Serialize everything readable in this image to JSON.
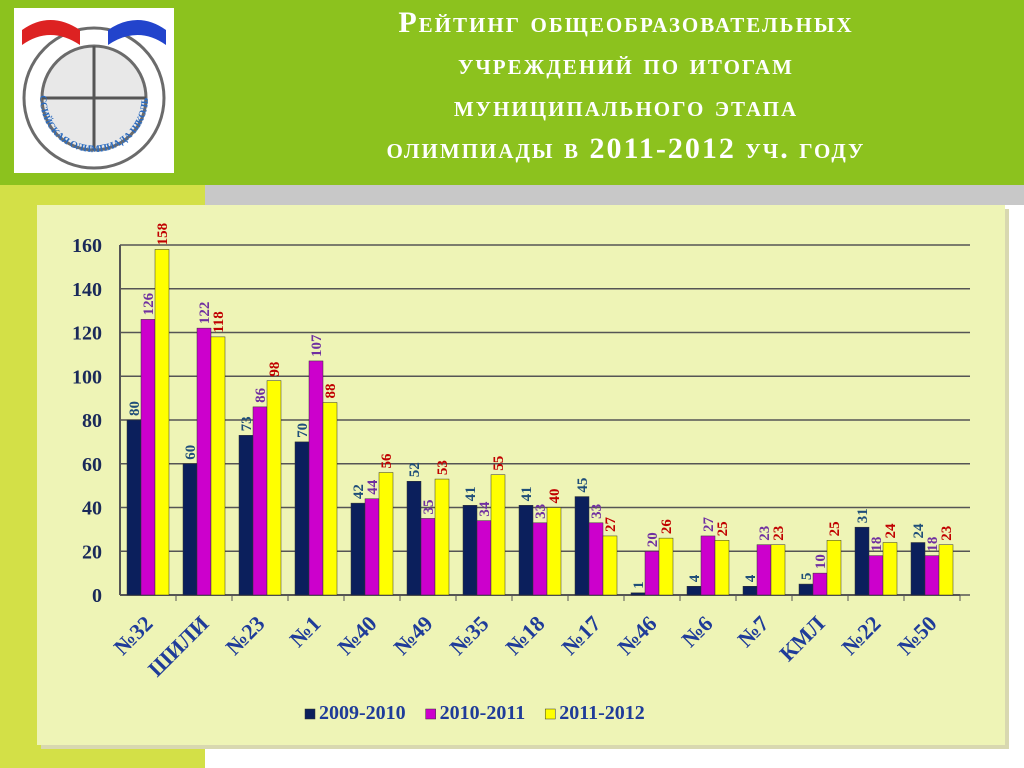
{
  "title": "Рейтинг общеобразовательных учреждений по итогам муниципального этапа олимпиады в 2011-2012 уч. году",
  "logo": {
    "text": "ВСЕРОССИЙСКАЯ ОЛИМПИАДА ШКОЛЬНИКОВ"
  },
  "chart_data": {
    "type": "bar",
    "categories": [
      "№32",
      "ШИЛИ",
      "№23",
      "№1",
      "№40",
      "№49",
      "№35",
      "№18",
      "№17",
      "№46",
      "№6",
      "№7",
      "КМЛ",
      "№22",
      "№50"
    ],
    "series": [
      {
        "name": "2009-2010",
        "color": "#0b1f5c",
        "label_color": "#1f4e79",
        "values": [
          80,
          60,
          73,
          70,
          42,
          52,
          41,
          41,
          45,
          1,
          4,
          4,
          5,
          31,
          24
        ]
      },
      {
        "name": "2010-2011",
        "color": "#cc00cc",
        "label_color": "#7030a0",
        "values": [
          126,
          122,
          86,
          107,
          44,
          35,
          34,
          33,
          33,
          20,
          27,
          23,
          10,
          18,
          18
        ]
      },
      {
        "name": "2011-2012",
        "color": "#ffff00",
        "label_color": "#c00000",
        "values": [
          158,
          118,
          98,
          88,
          56,
          53,
          55,
          40,
          27,
          26,
          25,
          23,
          25,
          24,
          23
        ]
      }
    ],
    "ylim": [
      0,
      160
    ],
    "yticks": [
      0,
      20,
      40,
      60,
      80,
      100,
      120,
      140,
      160
    ],
    "grid": true,
    "legend": "bottom"
  }
}
